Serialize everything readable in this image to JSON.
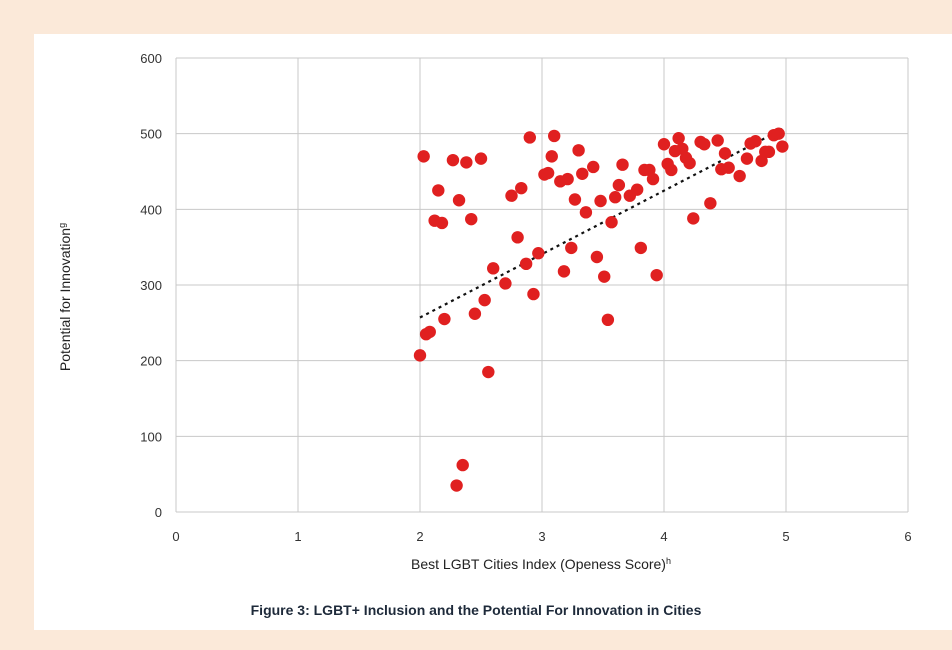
{
  "caption": "Figure 3: LGBT+ Inclusion and the Potential For Innovation in Cities",
  "chart_data": {
    "type": "scatter",
    "xlabel": "Best LGBT Cities Index (Openess Score)",
    "xlabel_sup": "h",
    "ylabel": "Potential for Innovation",
    "ylabel_sup": "g",
    "xlim": [
      0,
      6
    ],
    "ylim": [
      0,
      600
    ],
    "xticks": [
      "0",
      "1",
      "2",
      "3",
      "4",
      "5",
      "6"
    ],
    "yticks": [
      "0",
      "100",
      "200",
      "300",
      "400",
      "500",
      "600"
    ],
    "grid": true,
    "point_color": "#e02020",
    "trendline": {
      "style": "dotted",
      "x": [
        2.0,
        4.97
      ],
      "y": [
        257,
        506
      ]
    },
    "points": [
      [
        2.0,
        207
      ],
      [
        2.03,
        470
      ],
      [
        2.05,
        235
      ],
      [
        2.08,
        238
      ],
      [
        2.12,
        385
      ],
      [
        2.15,
        425
      ],
      [
        2.18,
        382
      ],
      [
        2.2,
        255
      ],
      [
        2.27,
        465
      ],
      [
        2.3,
        35
      ],
      [
        2.32,
        412
      ],
      [
        2.35,
        62
      ],
      [
        2.38,
        462
      ],
      [
        2.42,
        387
      ],
      [
        2.45,
        262
      ],
      [
        2.5,
        467
      ],
      [
        2.53,
        280
      ],
      [
        2.56,
        185
      ],
      [
        2.6,
        322
      ],
      [
        2.7,
        302
      ],
      [
        2.75,
        418
      ],
      [
        2.8,
        363
      ],
      [
        2.83,
        428
      ],
      [
        2.87,
        328
      ],
      [
        2.9,
        495
      ],
      [
        2.93,
        288
      ],
      [
        2.97,
        342
      ],
      [
        3.02,
        446
      ],
      [
        3.05,
        448
      ],
      [
        3.08,
        470
      ],
      [
        3.1,
        497
      ],
      [
        3.15,
        437
      ],
      [
        3.18,
        318
      ],
      [
        3.21,
        440
      ],
      [
        3.24,
        349
      ],
      [
        3.27,
        413
      ],
      [
        3.3,
        478
      ],
      [
        3.33,
        447
      ],
      [
        3.36,
        396
      ],
      [
        3.42,
        456
      ],
      [
        3.45,
        337
      ],
      [
        3.48,
        411
      ],
      [
        3.51,
        311
      ],
      [
        3.54,
        254
      ],
      [
        3.57,
        383
      ],
      [
        3.6,
        416
      ],
      [
        3.63,
        432
      ],
      [
        3.66,
        459
      ],
      [
        3.72,
        418
      ],
      [
        3.78,
        426
      ],
      [
        3.81,
        349
      ],
      [
        3.84,
        452
      ],
      [
        3.88,
        452
      ],
      [
        3.91,
        440
      ],
      [
        3.94,
        313
      ],
      [
        4.0,
        486
      ],
      [
        4.03,
        460
      ],
      [
        4.06,
        452
      ],
      [
        4.09,
        477
      ],
      [
        4.12,
        494
      ],
      [
        4.15,
        480
      ],
      [
        4.18,
        468
      ],
      [
        4.21,
        461
      ],
      [
        4.24,
        388
      ],
      [
        4.3,
        489
      ],
      [
        4.33,
        486
      ],
      [
        4.38,
        408
      ],
      [
        4.44,
        491
      ],
      [
        4.47,
        453
      ],
      [
        4.5,
        474
      ],
      [
        4.53,
        455
      ],
      [
        4.62,
        444
      ],
      [
        4.68,
        467
      ],
      [
        4.71,
        487
      ],
      [
        4.75,
        490
      ],
      [
        4.8,
        464
      ],
      [
        4.83,
        476
      ],
      [
        4.86,
        476
      ],
      [
        4.9,
        498
      ],
      [
        4.94,
        500
      ],
      [
        4.97,
        483
      ]
    ]
  }
}
